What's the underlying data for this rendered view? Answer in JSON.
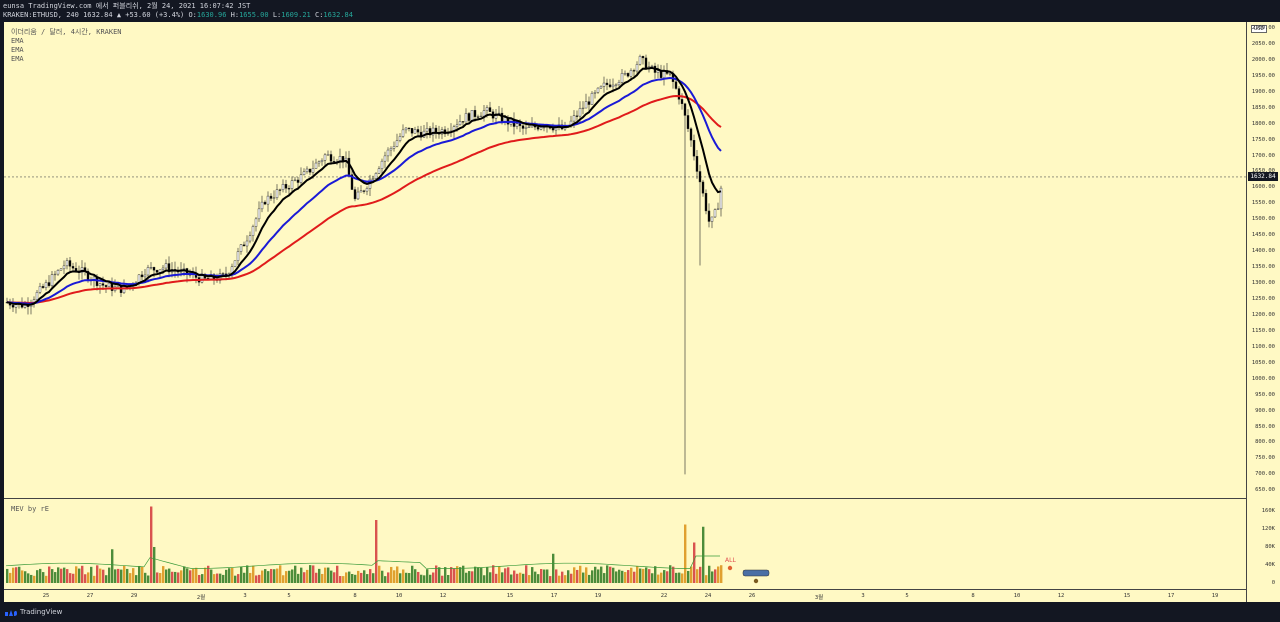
{
  "header": {
    "line1": "eunsa TradingView.com 에서 퍼블리쉬, 2월 24, 2021 16:07:42 JST",
    "symbol": "KRAKEN:ETHUSD, 240",
    "last": "1632.84",
    "change": "▲ +53.60 (+3.4%)",
    "o_label": "O:",
    "o_val": "1630.96",
    "h_label": "H:",
    "h_val": "1655.00",
    "l_label": "L:",
    "l_val": "1609.21",
    "c_label": "C:",
    "c_val": "1632.84"
  },
  "legend": {
    "title": "이더리움 / 달러, 4시간, KRAKEN",
    "ema1": "EMA",
    "ema2": "EMA",
    "ema3": "EMA",
    "volume_indicator": "MEV by rE"
  },
  "price_axis": {
    "currency": "USD",
    "current_price": "1632.84",
    "labels": [
      "2100.00",
      "2050.00",
      "2000.00",
      "1950.00",
      "1900.00",
      "1850.00",
      "1800.00",
      "1750.00",
      "1700.00",
      "1650.00",
      "1600.00",
      "1550.00",
      "1500.00",
      "1450.00",
      "1400.00",
      "1350.00",
      "1300.00",
      "1250.00",
      "1200.00",
      "1150.00",
      "1100.00",
      "1050.00",
      "1000.00",
      "950.00",
      "900.00",
      "850.00",
      "800.00",
      "750.00",
      "700.00",
      "650.00"
    ],
    "volume_labels": [
      "160K",
      "120K",
      "80K",
      "40K",
      "0"
    ]
  },
  "time_axis": {
    "labels": [
      "25",
      "27",
      "29",
      "2월",
      "3",
      "5",
      "8",
      "10",
      "12",
      "15",
      "17",
      "19",
      "22",
      "24",
      "26",
      "3월",
      "3",
      "5",
      "8",
      "10",
      "12",
      "15",
      "17",
      "19"
    ]
  },
  "annotations": {
    "all_label": "ALL"
  },
  "colors": {
    "background": "#fff9c4",
    "ema_black": "#000000",
    "ema_blue": "#1a1ad6",
    "ema_red": "#e01b1b",
    "candle_up": "#ffffff",
    "candle_down": "#000000"
  },
  "footer": {
    "brand": "TradingView"
  }
}
